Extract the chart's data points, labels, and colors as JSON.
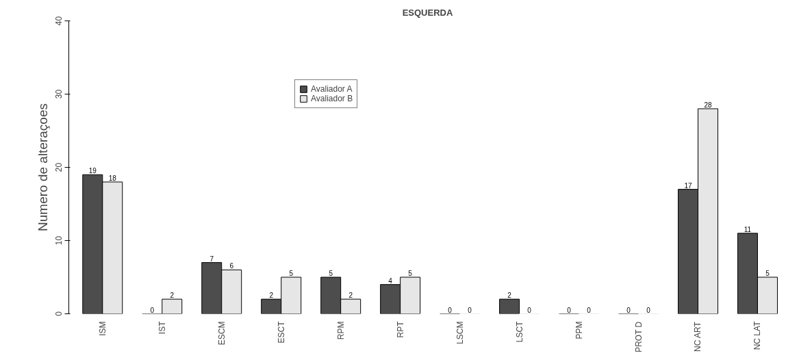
{
  "chart_data": {
    "type": "bar",
    "title": "ESQUERDA",
    "ylabel": "Numero de alteraçoes",
    "categories": [
      "ISM",
      "IST",
      "ESCM",
      "ESCT",
      "RPM",
      "RPT",
      "LSCM",
      "LSCT",
      "PPM",
      "PROT D",
      "NC ART",
      "NC LAT"
    ],
    "series": [
      {
        "name": "Avaliador A",
        "color": "#4d4d4d",
        "values": [
          19,
          0,
          7,
          2,
          5,
          4,
          0,
          2,
          0,
          0,
          17,
          11
        ]
      },
      {
        "name": "Avaliador B",
        "color": "#e6e6e6",
        "values": [
          18,
          2,
          6,
          5,
          2,
          5,
          0,
          0,
          0,
          0,
          28,
          5
        ]
      }
    ],
    "ylim": [
      0,
      40
    ],
    "yticks": [
      0,
      10,
      20,
      30,
      40
    ],
    "data_labels": true,
    "grid": false,
    "legend": "top left"
  }
}
